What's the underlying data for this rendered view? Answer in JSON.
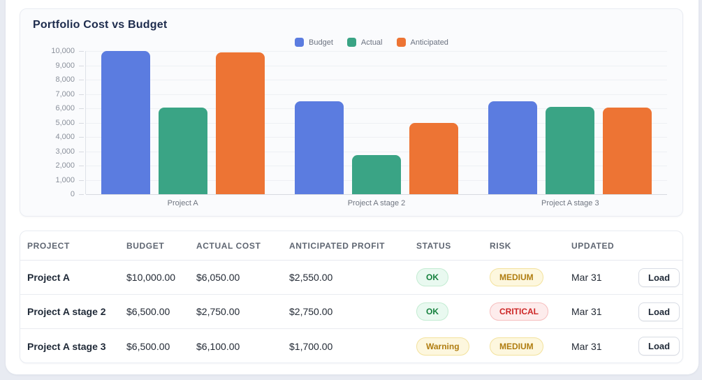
{
  "chart_data": {
    "type": "bar",
    "title": "Portfolio Cost vs Budget",
    "categories": [
      "Project A",
      "Project A stage 2",
      "Project A stage 3"
    ],
    "series": [
      {
        "name": "Budget",
        "color": "#5b7ce0",
        "values": [
          10000,
          6500,
          6500
        ]
      },
      {
        "name": "Actual",
        "color": "#3aa485",
        "values": [
          6050,
          2750,
          6100
        ]
      },
      {
        "name": "Anticipated",
        "color": "#ed7434",
        "values": [
          9900,
          5000,
          6050
        ]
      }
    ],
    "ylim": [
      0,
      10000
    ],
    "yticks": [
      0,
      1000,
      2000,
      3000,
      4000,
      5000,
      6000,
      7000,
      8000,
      9000,
      10000
    ],
    "ytick_labels": [
      "0",
      "1,000",
      "2,000",
      "3,000",
      "4,000",
      "5,000",
      "6,000",
      "7,000",
      "8,000",
      "9,000",
      "10,000"
    ],
    "grid": true,
    "legend_position": "top"
  },
  "table": {
    "columns": [
      "PROJECT",
      "BUDGET",
      "ACTUAL COST",
      "ANTICIPATED PROFIT",
      "STATUS",
      "RISK",
      "UPDATED",
      ""
    ],
    "rows": [
      {
        "project": "Project A",
        "budget": "$10,000.00",
        "actual_cost": "$6,050.00",
        "anticipated_profit": "$2,550.00",
        "status": "OK",
        "status_type": "ok",
        "risk": "MEDIUM",
        "risk_type": "medium",
        "updated": "Mar 31",
        "action": "Load"
      },
      {
        "project": "Project A stage 2",
        "budget": "$6,500.00",
        "actual_cost": "$2,750.00",
        "anticipated_profit": "$2,750.00",
        "status": "OK",
        "status_type": "ok",
        "risk": "CRITICAL",
        "risk_type": "critical",
        "updated": "Mar 31",
        "action": "Load"
      },
      {
        "project": "Project A stage 3",
        "budget": "$6,500.00",
        "actual_cost": "$6,100.00",
        "anticipated_profit": "$1,700.00",
        "status": "Warning",
        "status_type": "warning",
        "risk": "MEDIUM",
        "risk_type": "medium",
        "updated": "Mar 31",
        "action": "Load"
      }
    ]
  },
  "colors": {
    "page_background": "#e8ebf2",
    "card_background": "#fafbfd",
    "title_text": "#1d2b4c",
    "budget_bar": "#5b7ce0",
    "actual_bar": "#3aa485",
    "anticipated_bar": "#ed7434",
    "status_ok": "#15803d",
    "risk_medium": "#b07d10",
    "risk_critical": "#cd2626"
  }
}
